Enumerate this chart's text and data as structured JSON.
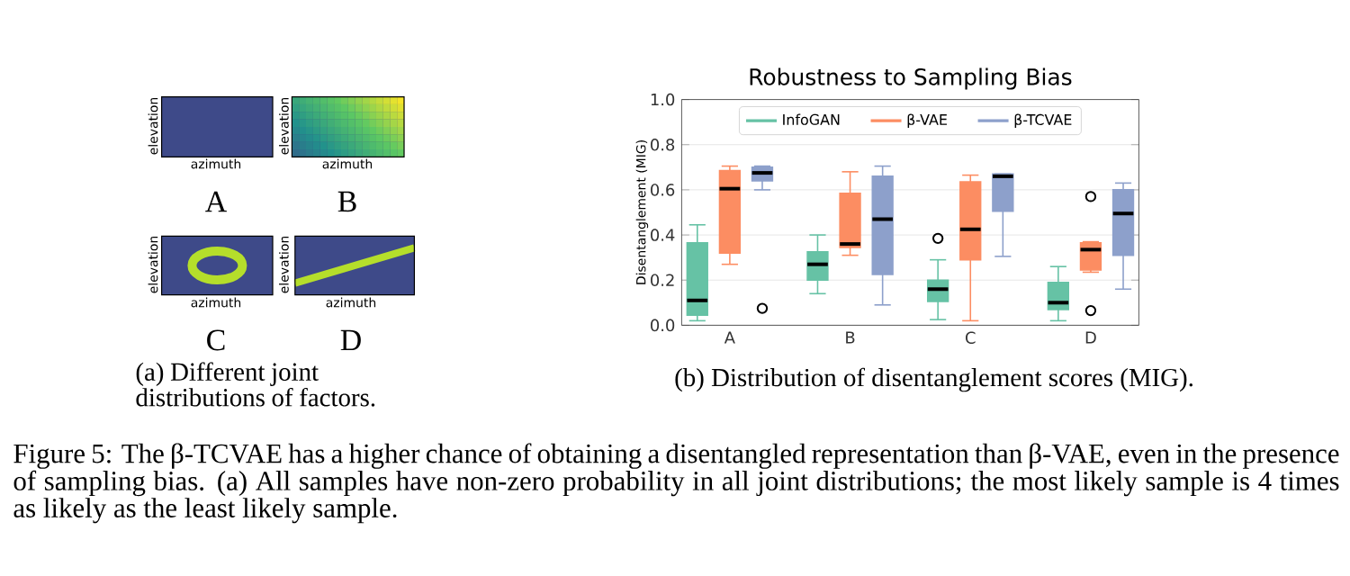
{
  "chart_data": {
    "type": "box",
    "title": "Robustness to Sampling Bias",
    "ylabel": "Disentanglement (MIG)",
    "categories": [
      "A",
      "B",
      "C",
      "D"
    ],
    "ylim": [
      0,
      1
    ],
    "yticks": [
      {
        "value": 0,
        "label": "0.0"
      },
      {
        "value": 0.2,
        "label": "0.2"
      },
      {
        "value": 0.4,
        "label": "0.4"
      },
      {
        "value": 0.6,
        "label": "0.6"
      },
      {
        "value": 0.8,
        "label": "0.8"
      },
      {
        "value": 1,
        "label": "1.0"
      }
    ],
    "grid": "y",
    "legend": "top",
    "series": [
      {
        "name": "InfoGAN",
        "color": "#66c2a5",
        "boxes": [
          {
            "low": 0.02,
            "q1": 0.045,
            "median": 0.11,
            "q3": 0.365,
            "high": 0.445
          },
          {
            "low": 0.14,
            "q1": 0.2,
            "median": 0.27,
            "q3": 0.325,
            "high": 0.4
          },
          {
            "low": 0.025,
            "q1": 0.105,
            "median": 0.16,
            "q3": 0.2,
            "high": 0.29,
            "outliers": [
              0.385
            ]
          },
          {
            "low": 0.02,
            "q1": 0.07,
            "median": 0.1,
            "q3": 0.19,
            "high": 0.26
          }
        ]
      },
      {
        "name": "β-VAE",
        "color": "#fc8d62",
        "boxes": [
          {
            "low": 0.27,
            "q1": 0.32,
            "median": 0.605,
            "q3": 0.685,
            "high": 0.705
          },
          {
            "low": 0.31,
            "q1": 0.345,
            "median": 0.36,
            "q3": 0.585,
            "high": 0.68
          },
          {
            "low": 0.02,
            "q1": 0.29,
            "median": 0.425,
            "q3": 0.635,
            "high": 0.665
          },
          {
            "low": 0.235,
            "q1": 0.245,
            "median": 0.335,
            "q3": 0.365,
            "high": 0.37,
            "outliers": [
              0.57,
              0.065
            ]
          }
        ]
      },
      {
        "name": "β-TCVAE",
        "color": "#8da0cb",
        "boxes": [
          {
            "low": 0.6,
            "q1": 0.64,
            "median": 0.675,
            "q3": 0.7,
            "high": 0.705,
            "outliers": [
              0.075
            ]
          },
          {
            "low": 0.09,
            "q1": 0.225,
            "median": 0.47,
            "q3": 0.66,
            "high": 0.705
          },
          {
            "low": 0.305,
            "q1": 0.505,
            "median": 0.66,
            "q3": 0.67,
            "high": 0.67
          },
          {
            "low": 0.16,
            "q1": 0.31,
            "median": 0.495,
            "q3": 0.6,
            "high": 0.63
          }
        ]
      }
    ],
    "annotations": [
      "elevation",
      "elevation",
      "elevation",
      "elevation",
      "azimuth",
      "azimuth",
      "azimuth",
      "azimuth",
      "A",
      "B",
      "C",
      "D",
      "(a) Different joint distributions of factors.",
      "(b) Distribution of disentanglement scores (MIG).",
      "Figure 5: The β-TCVAE has a higher chance of obtaining a disentangled representation than β-VAE, even in the presence of sampling bias. (a) All samples have non-zero probability in all joint distributions; the most likely sample is 4 times as likely as the least likely sample."
    ]
  }
}
